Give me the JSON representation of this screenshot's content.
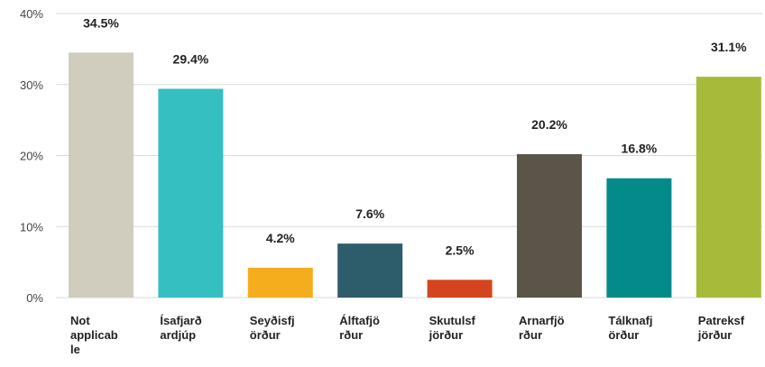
{
  "chart_data": {
    "type": "bar",
    "categories": [
      "Not applicable",
      "Ísafjarðardjúp",
      "Seyðisfjörður",
      "Álftafjörður",
      "Skutulsfjörður",
      "Arnarfjörður",
      "Tálknafjörður",
      "Patreksfjörður"
    ],
    "values": [
      34.5,
      29.4,
      4.2,
      7.6,
      2.5,
      20.2,
      16.8,
      31.1
    ],
    "value_labels": [
      "34.5%",
      "29.4%",
      "4.2%",
      "7.6%",
      "2.5%",
      "20.2%",
      "16.8%",
      "31.1%"
    ],
    "colors": [
      "#d0cdbf",
      "#36bfc1",
      "#f5ad1e",
      "#2d5c6b",
      "#d4451f",
      "#5a5548",
      "#038b8a",
      "#a8ba3a"
    ],
    "ylim": [
      0,
      40
    ],
    "yticks": [
      {
        "value": 0,
        "label": "0%"
      },
      {
        "value": 10,
        "label": "10%"
      },
      {
        "value": 20,
        "label": "20%"
      },
      {
        "value": 30,
        "label": "30%"
      },
      {
        "value": 40,
        "label": "40%"
      }
    ],
    "grid": true
  }
}
